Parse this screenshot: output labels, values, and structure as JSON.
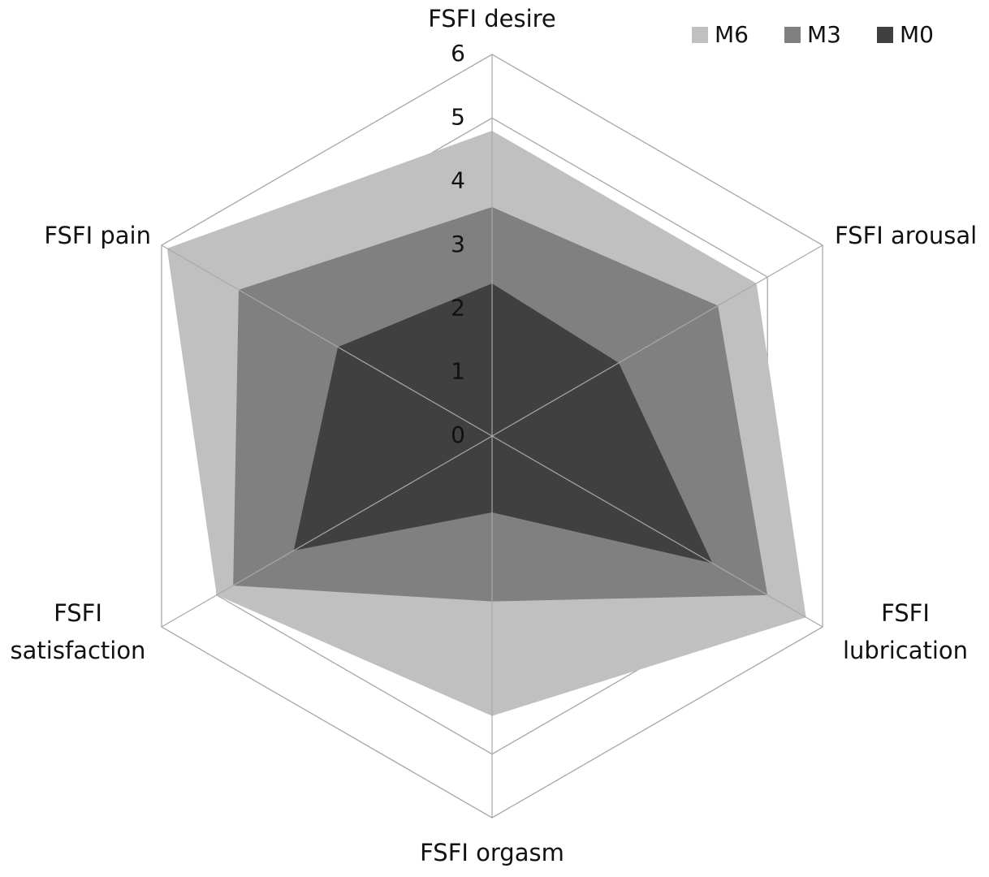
{
  "chart_data": {
    "type": "radar",
    "categories": [
      "FSFI desire",
      "FSFI arousal",
      "FSFI lubrication",
      "FSFI orgasm",
      "FSFI satisfaction",
      "FSFI pain"
    ],
    "series": [
      {
        "name": "M6",
        "color": "#c0c0c0",
        "values": [
          4.8,
          4.8,
          5.7,
          4.4,
          5.0,
          5.9
        ]
      },
      {
        "name": "M3",
        "color": "#808080",
        "values": [
          3.6,
          4.1,
          5.0,
          2.6,
          4.7,
          4.6
        ]
      },
      {
        "name": "M0",
        "color": "#404040",
        "values": [
          2.4,
          2.3,
          4.0,
          1.2,
          3.6,
          2.8
        ]
      }
    ],
    "ylim": [
      0,
      6
    ],
    "yticks": [
      0,
      1,
      2,
      3,
      4,
      5,
      6
    ],
    "grid": true,
    "legend": "top-right"
  }
}
